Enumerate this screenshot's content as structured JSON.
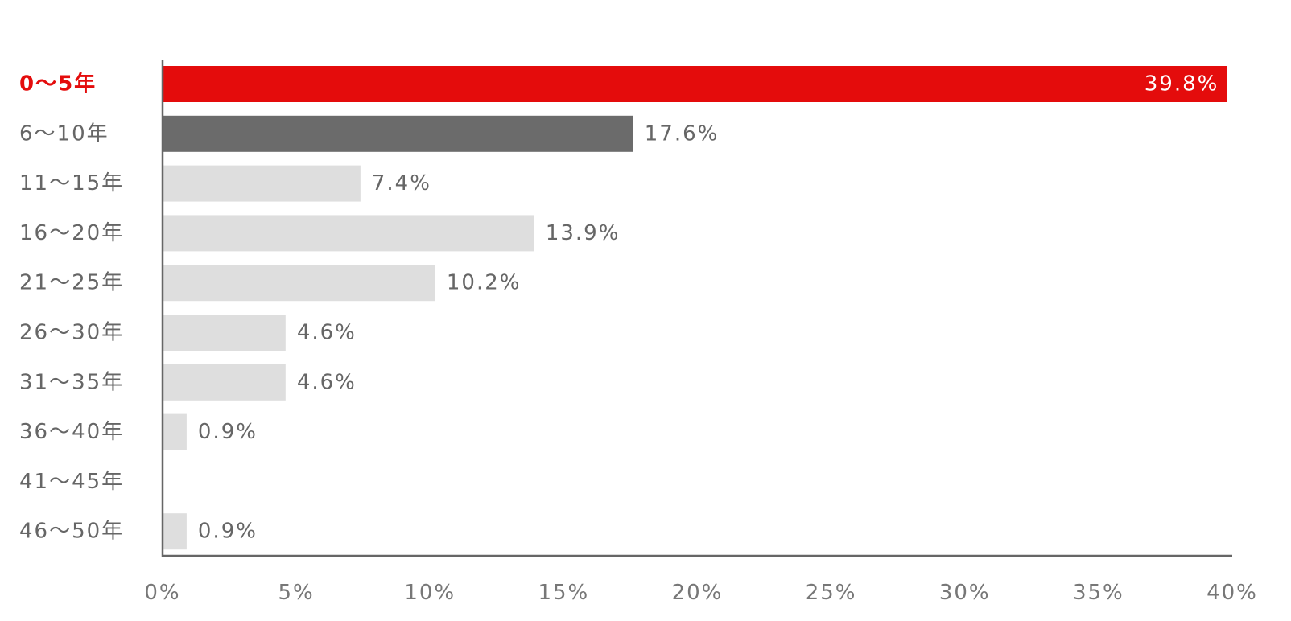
{
  "chart_data": {
    "type": "bar",
    "orientation": "horizontal",
    "categories": [
      "0～5年",
      "6～10年",
      "11～15年",
      "16～20年",
      "21～25年",
      "26～30年",
      "31～35年",
      "36～40年",
      "41～45年",
      "46～50年"
    ],
    "values": [
      39.8,
      17.6,
      7.4,
      13.9,
      10.2,
      4.6,
      4.6,
      0.9,
      null,
      0.9
    ],
    "value_labels": [
      "39.8%",
      "17.6%",
      "7.4%",
      "13.9%",
      "10.2%",
      "4.6%",
      "4.6%",
      "0.9%",
      "",
      "0.9%"
    ],
    "highlight_index": 0,
    "xlim": [
      0,
      40
    ],
    "x_ticks": [
      "0%",
      "5%",
      "10%",
      "15%",
      "20%",
      "25%",
      "30%",
      "35%",
      "40%"
    ],
    "grid": false,
    "legend": "none",
    "colors": {
      "highlight": "#e40c0c",
      "second": "#6b6b6b",
      "default": "#dedede",
      "highlight_text": "#e40c0c",
      "text": "#666666",
      "axis": "#666666"
    }
  }
}
